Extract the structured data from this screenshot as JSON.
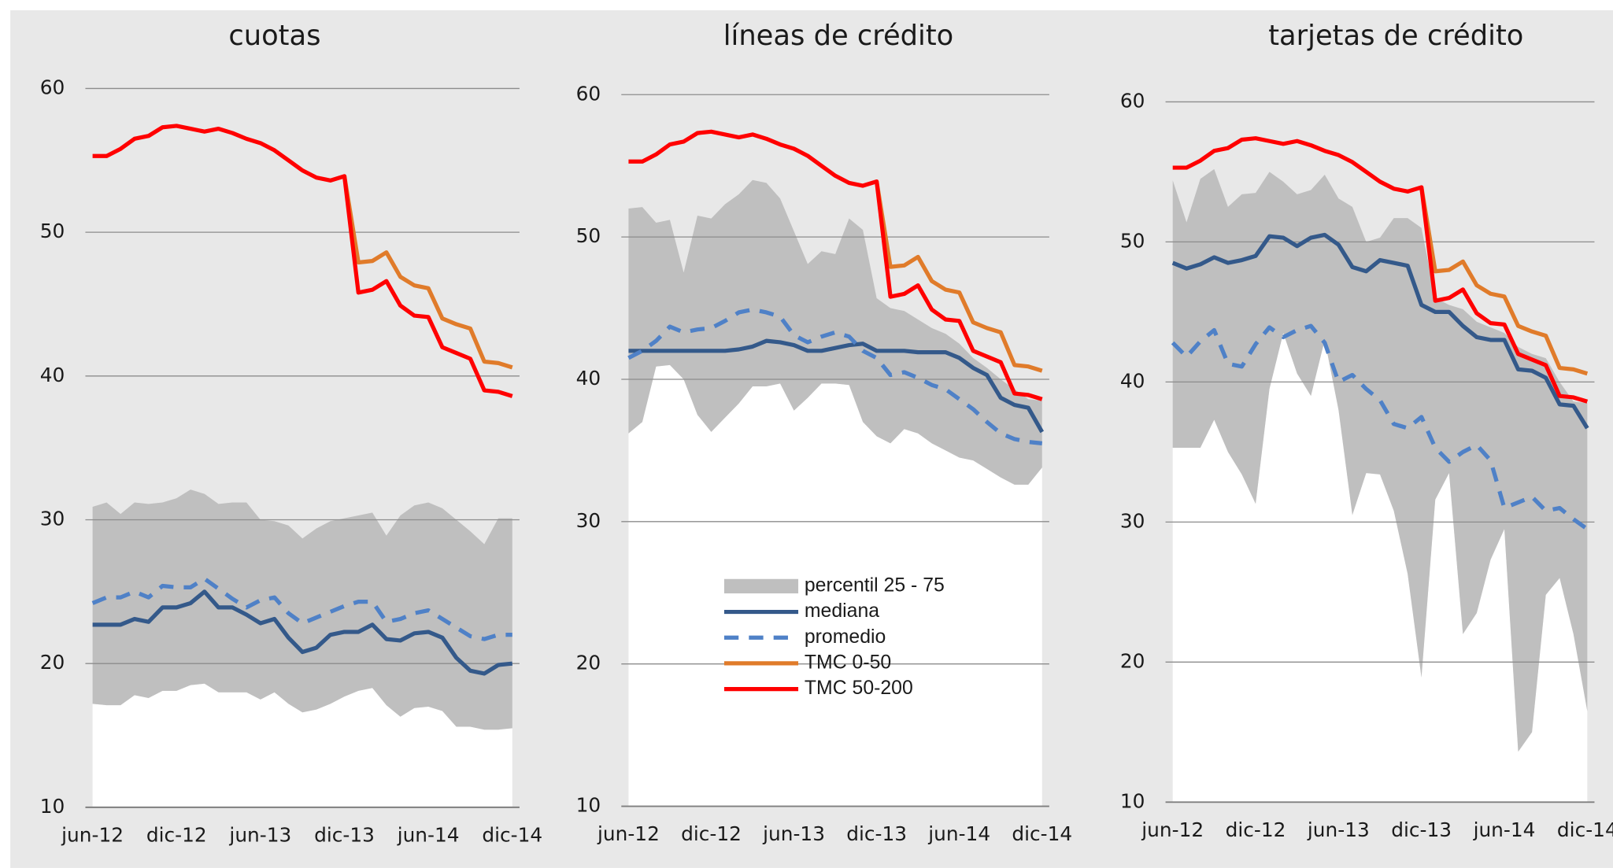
{
  "chart_data": [
    {
      "type": "line",
      "title": "cuotas",
      "categories": [
        "jun-12",
        null,
        null,
        null,
        null,
        null,
        "dic-12",
        null,
        null,
        null,
        null,
        null,
        "jun-13",
        null,
        null,
        null,
        null,
        null,
        "dic-13",
        null,
        null,
        null,
        null,
        null,
        "jun-14",
        null,
        null,
        null,
        null,
        null,
        "dic-14"
      ],
      "ylim": [
        10,
        60
      ],
      "yticks": [
        10,
        20,
        30,
        40,
        50,
        60
      ],
      "grid": true,
      "series": [
        {
          "color": "#bfbfbf",
          "low": [
            17.2,
            17.1,
            17.1,
            17.8,
            17.6,
            18.1,
            18.1,
            18.5,
            18.6,
            18.0,
            18.0,
            18.0,
            17.5,
            18.0,
            17.2,
            16.6,
            16.8,
            17.2,
            17.7,
            18.1,
            18.3,
            17.1,
            16.3,
            16.9,
            17.0,
            16.7,
            15.6,
            15.6,
            15.4,
            15.4,
            15.5
          ],
          "high": [
            30.9,
            31.2,
            30.4,
            31.2,
            31.1,
            31.2,
            31.5,
            32.1,
            31.8,
            31.1,
            31.2,
            31.2,
            30.0,
            29.9,
            29.6,
            28.7,
            29.4,
            29.9,
            30.1,
            30.3,
            30.5,
            28.9,
            30.3,
            31.0,
            31.2,
            30.8,
            30.0,
            29.2,
            28.3,
            30.1,
            30.1
          ]
        },
        {
          "color": "#34598a",
          "values": [
            22.7,
            22.7,
            22.7,
            23.1,
            22.9,
            23.9,
            23.9,
            24.2,
            25.0,
            23.9,
            23.9,
            23.4,
            22.8,
            23.1,
            21.8,
            20.8,
            21.1,
            22.0,
            22.2,
            22.2,
            22.7,
            21.7,
            21.6,
            22.1,
            22.2,
            21.8,
            20.4,
            19.5,
            19.3,
            19.9,
            20.0
          ]
        },
        {
          "color": "#4f81c7",
          "dashed": true,
          "values": [
            24.2,
            24.6,
            24.6,
            25.0,
            24.6,
            25.4,
            25.3,
            25.3,
            25.9,
            25.2,
            24.5,
            23.9,
            24.4,
            24.6,
            23.5,
            22.8,
            23.2,
            23.6,
            24.0,
            24.3,
            24.3,
            22.9,
            23.1,
            23.5,
            23.7,
            23.1,
            22.5,
            21.9,
            21.7,
            22.0,
            22.0
          ]
        },
        {
          "color": "#e07b2a",
          "values": [
            null,
            null,
            null,
            null,
            null,
            null,
            null,
            null,
            null,
            null,
            null,
            null,
            null,
            null,
            null,
            null,
            null,
            null,
            53.9,
            47.9,
            48.0,
            48.6,
            46.9,
            46.3,
            46.1,
            44.0,
            43.6,
            43.3,
            41.0,
            40.9,
            40.6
          ]
        },
        {
          "color": "#ff0000",
          "values": [
            55.3,
            55.3,
            55.8,
            56.5,
            56.7,
            57.3,
            57.4,
            57.2,
            57.0,
            57.2,
            56.9,
            56.5,
            56.2,
            55.7,
            55.0,
            54.3,
            53.8,
            53.6,
            53.9,
            45.8,
            46.0,
            46.6,
            44.9,
            44.2,
            44.1,
            42.0,
            41.6,
            41.2,
            39.0,
            38.9,
            38.6
          ]
        }
      ]
    },
    {
      "type": "line",
      "title": "líneas de crédito",
      "categories": [
        "jun-12",
        null,
        null,
        null,
        null,
        null,
        "dic-12",
        null,
        null,
        null,
        null,
        null,
        "jun-13",
        null,
        null,
        null,
        null,
        null,
        "dic-13",
        null,
        null,
        null,
        null,
        null,
        "jun-14",
        null,
        null,
        null,
        null,
        null,
        "dic-14"
      ],
      "ylim": [
        10,
        60
      ],
      "yticks": [
        10,
        20,
        30,
        40,
        50,
        60
      ],
      "grid": true,
      "legend": "lower center",
      "series": [
        {
          "name": "percentil 25 - 75",
          "color": "#bfbfbf",
          "low": [
            36.2,
            37.0,
            40.9,
            41.0,
            40.0,
            37.5,
            36.3,
            37.3,
            38.3,
            39.5,
            39.5,
            39.7,
            37.8,
            38.7,
            39.7,
            39.7,
            39.6,
            37.0,
            36.0,
            35.5,
            36.5,
            36.2,
            35.5,
            35.0,
            34.5,
            34.3,
            33.7,
            33.1,
            32.6,
            32.6,
            33.8
          ],
          "high": [
            52.0,
            52.1,
            51.0,
            51.2,
            47.5,
            51.5,
            51.3,
            52.3,
            53.0,
            54.0,
            53.8,
            52.7,
            50.4,
            48.1,
            49.0,
            48.8,
            51.3,
            50.5,
            45.7,
            45.0,
            44.8,
            44.2,
            43.6,
            43.2,
            42.5,
            41.5,
            40.8,
            40.0,
            39.3,
            38.6,
            38.5
          ]
        },
        {
          "name": "mediana",
          "color": "#34598a",
          "values": [
            42.0,
            42.0,
            42.0,
            42.0,
            42.0,
            42.0,
            42.0,
            42.0,
            42.1,
            42.3,
            42.7,
            42.6,
            42.4,
            42.0,
            42.0,
            42.2,
            42.4,
            42.5,
            42.0,
            42.0,
            42.0,
            41.9,
            41.9,
            41.9,
            41.5,
            40.8,
            40.3,
            38.7,
            38.2,
            38.0,
            36.3
          ]
        },
        {
          "name": "promedio",
          "color": "#4f81c7",
          "dashed": true,
          "values": [
            41.5,
            42.0,
            42.7,
            43.7,
            43.3,
            43.5,
            43.6,
            44.1,
            44.7,
            44.9,
            44.7,
            44.4,
            43.1,
            42.6,
            43.0,
            43.3,
            43.0,
            42.0,
            41.5,
            40.3,
            40.5,
            40.1,
            39.6,
            39.3,
            38.6,
            37.9,
            37.0,
            36.2,
            35.8,
            35.6,
            35.5
          ]
        },
        {
          "name": "TMC 0-50",
          "color": "#e07b2a",
          "values": [
            null,
            null,
            null,
            null,
            null,
            null,
            null,
            null,
            null,
            null,
            null,
            null,
            null,
            null,
            null,
            null,
            null,
            null,
            53.9,
            47.9,
            48.0,
            48.6,
            46.9,
            46.3,
            46.1,
            44.0,
            43.6,
            43.3,
            41.0,
            40.9,
            40.6
          ]
        },
        {
          "name": "TMC 50-200",
          "color": "#ff0000",
          "values": [
            55.3,
            55.3,
            55.8,
            56.5,
            56.7,
            57.3,
            57.4,
            57.2,
            57.0,
            57.2,
            56.9,
            56.5,
            56.2,
            55.7,
            55.0,
            54.3,
            53.8,
            53.6,
            53.9,
            45.8,
            46.0,
            46.6,
            44.9,
            44.2,
            44.1,
            42.0,
            41.6,
            41.2,
            39.0,
            38.9,
            38.6
          ]
        }
      ]
    },
    {
      "type": "line",
      "title": "tarjetas de crédito",
      "categories": [
        "jun-12",
        null,
        null,
        null,
        null,
        null,
        "dic-12",
        null,
        null,
        null,
        null,
        null,
        "jun-13",
        null,
        null,
        null,
        null,
        null,
        "dic-13",
        null,
        null,
        null,
        null,
        null,
        "jun-14",
        null,
        null,
        null,
        null,
        null,
        "dic-14"
      ],
      "ylim": [
        10,
        60
      ],
      "yticks": [
        10,
        20,
        30,
        40,
        50,
        60
      ],
      "grid": true,
      "series": [
        {
          "color": "#bfbfbf",
          "low": [
            35.3,
            35.3,
            35.3,
            37.3,
            35.0,
            33.4,
            31.3,
            39.5,
            43.5,
            40.6,
            39.0,
            43.0,
            38.0,
            30.5,
            33.5,
            33.4,
            30.8,
            26.3,
            18.9,
            31.6,
            33.5,
            22.0,
            23.5,
            27.3,
            29.5,
            13.6,
            15.0,
            24.8,
            26.0,
            22.0,
            16.5
          ],
          "high": [
            54.4,
            51.4,
            54.5,
            55.2,
            52.5,
            53.4,
            53.5,
            55.0,
            54.3,
            53.4,
            53.7,
            54.8,
            53.1,
            52.5,
            50.0,
            50.3,
            51.7,
            51.7,
            51.0,
            46.0,
            45.5,
            45.2,
            44.3,
            43.9,
            43.5,
            42.5,
            42.0,
            41.7,
            40.0,
            38.6,
            38.5
          ]
        },
        {
          "color": "#34598a",
          "values": [
            48.5,
            48.1,
            48.4,
            48.9,
            48.5,
            48.7,
            49.0,
            50.4,
            50.3,
            49.7,
            50.3,
            50.5,
            49.8,
            48.2,
            47.9,
            48.7,
            48.5,
            48.3,
            45.5,
            45.0,
            45.0,
            44.0,
            43.2,
            43.0,
            43.0,
            40.9,
            40.8,
            40.3,
            38.4,
            38.3,
            36.7
          ]
        },
        {
          "color": "#4f81c7",
          "dashed": true,
          "values": [
            42.8,
            41.8,
            42.9,
            43.7,
            41.3,
            41.1,
            42.7,
            43.9,
            43.2,
            43.7,
            44.0,
            42.8,
            40.0,
            40.5,
            39.5,
            38.7,
            37.0,
            36.7,
            37.5,
            35.3,
            34.3,
            35.0,
            35.5,
            34.4,
            31.0,
            31.4,
            31.8,
            30.8,
            31.0,
            30.2,
            29.5
          ]
        },
        {
          "color": "#e07b2a",
          "values": [
            null,
            null,
            null,
            null,
            null,
            null,
            null,
            null,
            null,
            null,
            null,
            null,
            null,
            null,
            null,
            null,
            null,
            null,
            53.9,
            47.9,
            48.0,
            48.6,
            46.9,
            46.3,
            46.1,
            44.0,
            43.6,
            43.3,
            41.0,
            40.9,
            40.6
          ]
        },
        {
          "color": "#ff0000",
          "values": [
            55.3,
            55.3,
            55.8,
            56.5,
            56.7,
            57.3,
            57.4,
            57.2,
            57.0,
            57.2,
            56.9,
            56.5,
            56.2,
            55.7,
            55.0,
            54.3,
            53.8,
            53.6,
            53.9,
            45.8,
            46.0,
            46.6,
            44.9,
            44.2,
            44.1,
            42.0,
            41.6,
            41.2,
            39.0,
            38.9,
            38.6
          ]
        }
      ]
    }
  ]
}
